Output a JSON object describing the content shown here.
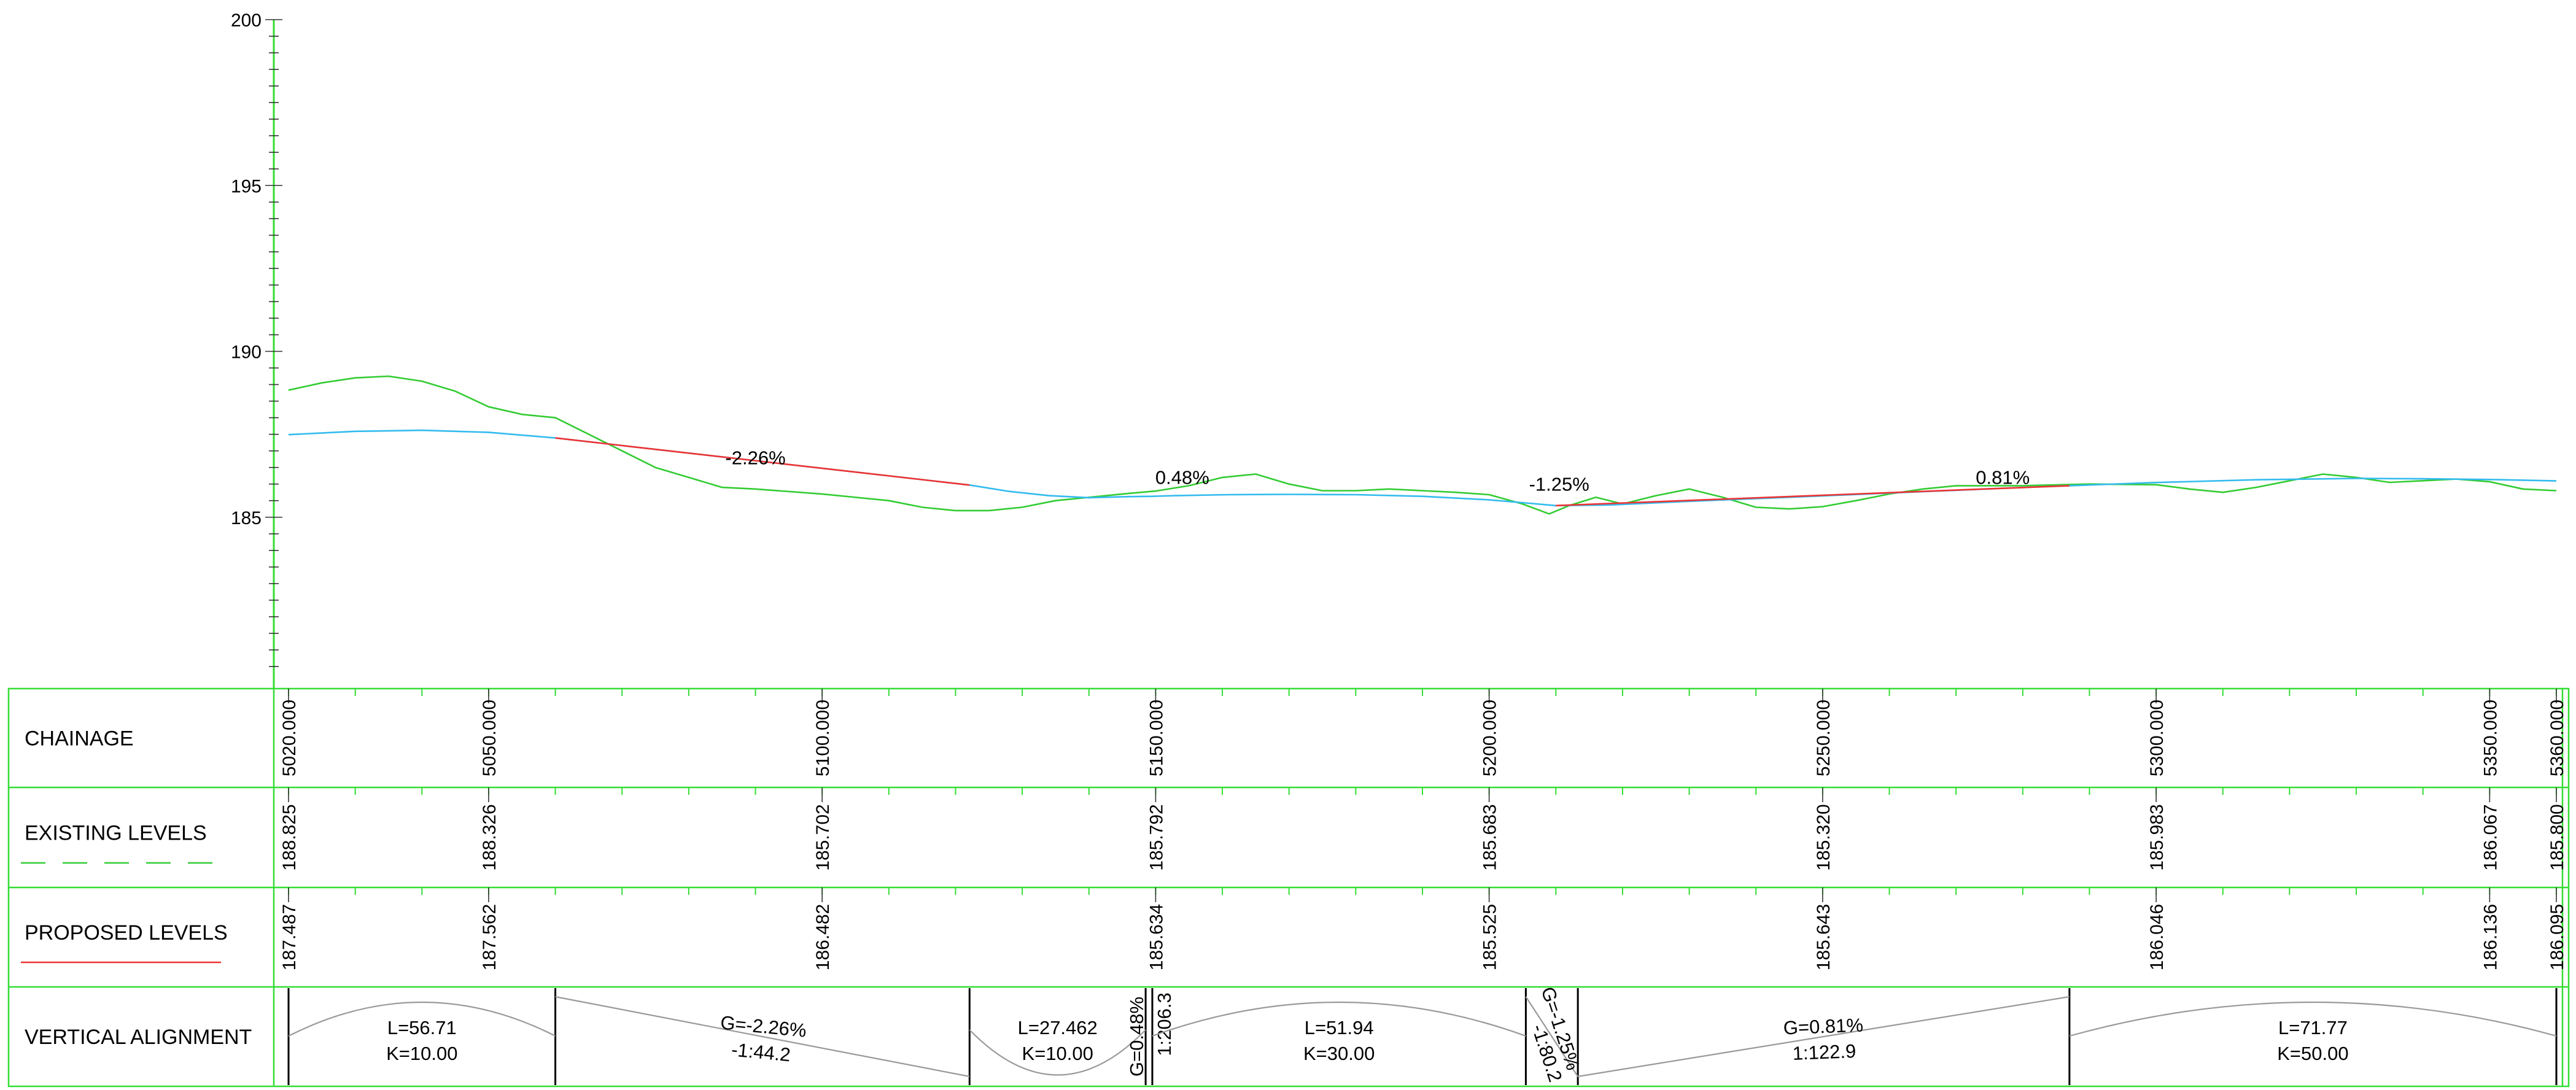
{
  "chart_data": {
    "type": "line",
    "title": "",
    "xlabel": "",
    "ylabel": "",
    "xlim": [
      5020,
      5360
    ],
    "ylim": [
      180,
      200
    ],
    "y_ticks": [
      200,
      195,
      190,
      185
    ],
    "y_tick_labels": [
      "200",
      "195",
      "190",
      "185"
    ],
    "series": [
      {
        "kind": "existing",
        "color": "#33cc33",
        "points": [
          [
            5020,
            188.83
          ],
          [
            5025,
            189.05
          ],
          [
            5030,
            189.2
          ],
          [
            5035,
            189.25
          ],
          [
            5040,
            189.1
          ],
          [
            5045,
            188.8
          ],
          [
            5050,
            188.33
          ],
          [
            5055,
            188.1
          ],
          [
            5060,
            188.0
          ],
          [
            5065,
            187.5
          ],
          [
            5070,
            187.0
          ],
          [
            5075,
            186.5
          ],
          [
            5080,
            186.2
          ],
          [
            5085,
            185.9
          ],
          [
            5090,
            185.85
          ],
          [
            5100,
            185.7
          ],
          [
            5110,
            185.5
          ],
          [
            5115,
            185.3
          ],
          [
            5120,
            185.2
          ],
          [
            5125,
            185.2
          ],
          [
            5130,
            185.3
          ],
          [
            5135,
            185.5
          ],
          [
            5140,
            185.6
          ],
          [
            5145,
            185.7
          ],
          [
            5150,
            185.79
          ],
          [
            5155,
            185.95
          ],
          [
            5160,
            186.2
          ],
          [
            5165,
            186.3
          ],
          [
            5170,
            186.0
          ],
          [
            5175,
            185.8
          ],
          [
            5180,
            185.8
          ],
          [
            5185,
            185.85
          ],
          [
            5190,
            185.8
          ],
          [
            5195,
            185.75
          ],
          [
            5200,
            185.68
          ],
          [
            5205,
            185.4
          ],
          [
            5209,
            185.1
          ],
          [
            5212,
            185.35
          ],
          [
            5216,
            185.6
          ],
          [
            5220,
            185.4
          ],
          [
            5225,
            185.65
          ],
          [
            5230,
            185.85
          ],
          [
            5235,
            185.6
          ],
          [
            5240,
            185.3
          ],
          [
            5245,
            185.25
          ],
          [
            5250,
            185.32
          ],
          [
            5255,
            185.5
          ],
          [
            5260,
            185.7
          ],
          [
            5265,
            185.85
          ],
          [
            5270,
            185.95
          ],
          [
            5280,
            185.95
          ],
          [
            5290,
            186.0
          ],
          [
            5300,
            185.98
          ],
          [
            5305,
            185.85
          ],
          [
            5310,
            185.75
          ],
          [
            5315,
            185.9
          ],
          [
            5320,
            186.1
          ],
          [
            5325,
            186.3
          ],
          [
            5330,
            186.2
          ],
          [
            5335,
            186.05
          ],
          [
            5340,
            186.1
          ],
          [
            5345,
            186.15
          ],
          [
            5350,
            186.07
          ],
          [
            5355,
            185.85
          ],
          [
            5360,
            185.8
          ]
        ]
      },
      {
        "kind": "proposed-vertical-curves",
        "color": "#33bbee",
        "points": [
          [
            5020,
            187.49
          ],
          [
            5030,
            187.59
          ],
          [
            5040,
            187.62
          ],
          [
            5050,
            187.56
          ],
          [
            5060,
            187.39
          ],
          [
            5122.1,
            185.97
          ],
          [
            5128,
            185.78
          ],
          [
            5134,
            185.65
          ],
          [
            5140,
            185.59
          ],
          [
            5146,
            185.62
          ],
          [
            5149.5,
            185.63
          ],
          [
            5150,
            185.634
          ],
          [
            5153,
            185.65
          ],
          [
            5161,
            185.68
          ],
          [
            5170,
            185.69
          ],
          [
            5180,
            185.68
          ],
          [
            5190,
            185.63
          ],
          [
            5200,
            185.525
          ],
          [
            5205.5,
            185.43
          ],
          [
            5210,
            185.35
          ],
          [
            5218,
            185.37
          ],
          [
            5230,
            185.48
          ],
          [
            5250,
            185.643
          ],
          [
            5266,
            185.78
          ],
          [
            5278,
            185.88
          ],
          [
            5287,
            185.95
          ],
          [
            5300,
            186.046
          ],
          [
            5315,
            186.13
          ],
          [
            5330,
            186.17
          ],
          [
            5340,
            186.16
          ],
          [
            5350,
            186.136
          ],
          [
            5360,
            186.095
          ]
        ]
      },
      {
        "kind": "proposed-grade-lines",
        "color": "#ee3333",
        "segments": [
          [
            [
              5060,
              187.39
            ],
            [
              5122.1,
              185.97
            ]
          ],
          [
            [
              5210,
              185.35
            ],
            [
              5287,
              185.95
            ]
          ]
        ]
      }
    ],
    "grade_labels": [
      {
        "x": 5090,
        "y": 186.6,
        "text": "-2.26%"
      },
      {
        "x": 5154,
        "y": 186.0,
        "text": "0.48%"
      },
      {
        "x": 5210.5,
        "y": 185.8,
        "text": "-1.25%"
      },
      {
        "x": 5277,
        "y": 186.0,
        "text": "0.81%"
      }
    ],
    "band_rows": [
      {
        "label": "CHAINAGE",
        "legend": "none",
        "values": [
          "5020.000",
          "5050.000",
          "5100.000",
          "5150.000",
          "5200.000",
          "5250.000",
          "5300.000",
          "5350.000",
          "5360.000"
        ]
      },
      {
        "label": "EXISTING LEVELS",
        "legend": "dashed-green",
        "values": [
          "188.825",
          "188.326",
          "185.702",
          "185.792",
          "185.683",
          "185.320",
          "185.983",
          "186.067",
          "185.800"
        ]
      },
      {
        "label": "PROPOSED LEVELS",
        "legend": "solid-red",
        "values": [
          "187.487",
          "187.562",
          "186.482",
          "185.634",
          "185.525",
          "185.643",
          "186.046",
          "186.136",
          "186.095"
        ]
      },
      {
        "label": "VERTICAL ALIGNMENT",
        "legend": "none"
      }
    ],
    "band_chainages": [
      5020,
      5050,
      5100,
      5150,
      5200,
      5250,
      5300,
      5350,
      5360
    ],
    "vertical_alignment": {
      "boundaries": [
        5020,
        5060,
        5122.1,
        5148.5,
        5149.5,
        5205.5,
        5213.3,
        5287,
        5360
      ],
      "cells": [
        {
          "kind": "crest",
          "from": 5020,
          "to": 5060,
          "lines": [
            "L=56.71",
            "K=10.00"
          ]
        },
        {
          "kind": "grade-down",
          "from": 5060,
          "to": 5122.1,
          "lines": [
            "G=-2.26%",
            "-1:44.2"
          ]
        },
        {
          "kind": "sag",
          "from": 5122.1,
          "to": 5148.5,
          "lines": [
            "L=27.462",
            "K=10.00"
          ]
        },
        {
          "kind": "grade-up-vertical",
          "from": 5148.5,
          "to": 5149.5,
          "lines": [
            "G=0.48%",
            "1:206.3"
          ]
        },
        {
          "kind": "crest",
          "from": 5149.5,
          "to": 5205.5,
          "lines": [
            "L=51.94",
            "K=30.00"
          ]
        },
        {
          "kind": "grade-down-rotated",
          "from": 5205.5,
          "to": 5213.3,
          "lines": [
            "G=-1.25%",
            "-1:80.2"
          ]
        },
        {
          "kind": "grade-up",
          "from": 5213.3,
          "to": 5287,
          "lines": [
            "G=0.81%",
            "1:122.9"
          ]
        },
        {
          "kind": "crest",
          "from": 5287,
          "to": 5360,
          "lines": [
            "L=71.77",
            "K=50.00"
          ]
        }
      ]
    }
  }
}
